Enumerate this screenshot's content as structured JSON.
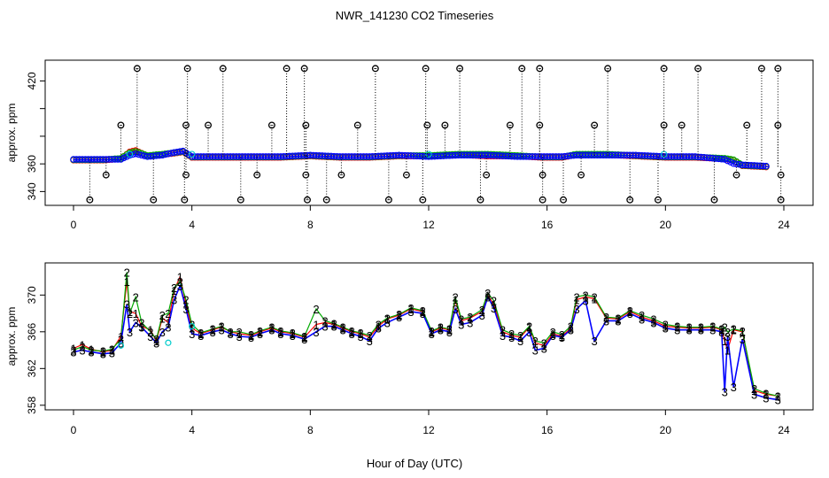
{
  "title": "NWR_141230  CO2 Timeseries",
  "xlabel": "Hour of Day (UTC)",
  "chart_data": [
    {
      "type": "scatter",
      "panel": "top",
      "ylabel": "approx. ppm",
      "xlim": [
        0,
        24
      ],
      "ylim": [
        330,
        435
      ],
      "x_ticks": [
        0,
        4,
        8,
        12,
        16,
        20,
        24
      ],
      "y_ticks": [
        340,
        360,
        380,
        400,
        420
      ],
      "y_ticks_labeled": [
        340,
        360,
        420
      ],
      "grid": false,
      "baseline_series": [
        {
          "name": "",
          "color": "#ff0000",
          "x": [
            0,
            1,
            1.6,
            1.9,
            2.1,
            2.5,
            3,
            3.4,
            3.7,
            4,
            5,
            6,
            7,
            8,
            9,
            10,
            11,
            12,
            13,
            14,
            15,
            15.8,
            16.5,
            17,
            18,
            19,
            20,
            21,
            22,
            22.3,
            22.6,
            23.5
          ],
          "y": [
            363,
            363,
            364,
            369,
            370,
            366,
            367,
            368,
            369,
            365,
            365,
            365,
            365,
            366,
            365,
            365,
            366,
            366,
            367,
            366,
            366,
            365,
            365,
            367,
            367,
            366,
            365,
            365,
            364,
            363,
            359,
            358
          ]
        },
        {
          "name": "",
          "color": "#00aa00",
          "x": [
            0,
            1,
            1.6,
            1.9,
            2.1,
            2.5,
            3,
            3.4,
            3.7,
            4,
            5,
            6,
            7,
            8,
            9,
            10,
            11,
            12,
            13,
            14,
            15,
            15.8,
            16.5,
            17,
            18,
            19,
            20,
            21,
            22,
            22.3,
            22.6,
            23.5
          ],
          "y": [
            363,
            363,
            364,
            368,
            369,
            366,
            367,
            368,
            369,
            365,
            365,
            365,
            365,
            366,
            365,
            365,
            366,
            366,
            367,
            367,
            366,
            365,
            365,
            367,
            367,
            366,
            365,
            365,
            364,
            363,
            359,
            358
          ]
        },
        {
          "name": "",
          "color": "#0000ff",
          "x": [
            0,
            1,
            1.6,
            1.9,
            2.1,
            2.5,
            3,
            3.4,
            3.7,
            4,
            5,
            6,
            7,
            8,
            9,
            10,
            11,
            12,
            13,
            14,
            15,
            15.8,
            16.5,
            17,
            18,
            19,
            20,
            21,
            22,
            22.3,
            22.6,
            23.5
          ],
          "y": [
            363,
            363,
            363,
            366,
            367,
            365,
            366,
            368,
            369,
            365,
            365,
            365,
            365,
            366,
            365,
            365,
            366,
            365,
            366,
            366,
            365,
            365,
            365,
            366,
            366,
            366,
            365,
            365,
            363,
            360,
            359,
            358
          ]
        }
      ],
      "spikes_up": {
        "x": [
          2.15,
          3.85,
          5.05,
          7.2,
          7.8,
          10.2,
          11.9,
          13.05,
          15.15,
          15.75,
          18.05,
          19.95,
          21.1,
          23.25,
          23.8
        ],
        "y": [
          429,
          429,
          429,
          429,
          429,
          429,
          429,
          429,
          429,
          429,
          429,
          429,
          429,
          429,
          429
        ]
      },
      "spikes_mid": {
        "x": [
          1.6,
          3.8,
          4.55,
          6.7,
          7.85,
          9.6,
          11.95,
          12.55,
          14.75,
          15.75,
          17.6,
          19.95,
          20.55,
          22.75,
          23.8
        ],
        "y": [
          388,
          388,
          388,
          388,
          388,
          388,
          388,
          388,
          388,
          388,
          388,
          388,
          388,
          388,
          388
        ]
      },
      "spikes_low": {
        "x": [
          1.1,
          3.8,
          6.2,
          7.85,
          9.05,
          11.25,
          13.95,
          15.85,
          17.15,
          22.4,
          23.9
        ],
        "y": [
          352,
          352,
          352,
          352,
          352,
          352,
          352,
          352,
          352,
          352,
          352
        ]
      },
      "spikes_bottom": {
        "x": [
          0.55,
          2.7,
          3.75,
          5.65,
          7.9,
          8.55,
          10.65,
          11.8,
          13.75,
          15.85,
          16.55,
          18.8,
          19.75,
          21.65,
          23.9
        ],
        "y": [
          334,
          334,
          334,
          334,
          334,
          334,
          334,
          334,
          334,
          334,
          334,
          334,
          334,
          334,
          334
        ]
      }
    },
    {
      "type": "line",
      "panel": "bottom",
      "ylabel": "approx. ppm",
      "xlim": [
        0,
        24
      ],
      "ylim": [
        357.5,
        373.5
      ],
      "x_ticks": [
        0,
        4,
        8,
        12,
        16,
        20,
        24
      ],
      "y_ticks": [
        358,
        362,
        366,
        370
      ],
      "grid": false,
      "x": [
        0,
        0.3,
        0.6,
        1.0,
        1.3,
        1.6,
        1.8,
        1.9,
        2.1,
        2.3,
        2.6,
        2.8,
        3.0,
        3.2,
        3.4,
        3.6,
        3.8,
        4.0,
        4.3,
        4.7,
        5.0,
        5.3,
        5.6,
        6.0,
        6.3,
        6.7,
        7.0,
        7.4,
        7.8,
        8.2,
        8.5,
        8.8,
        9.1,
        9.4,
        9.7,
        10.0,
        10.3,
        10.6,
        11.0,
        11.4,
        11.8,
        12.1,
        12.4,
        12.7,
        12.9,
        13.1,
        13.4,
        13.8,
        14.0,
        14.2,
        14.5,
        14.8,
        15.1,
        15.4,
        15.6,
        15.9,
        16.2,
        16.5,
        16.8,
        17.0,
        17.3,
        17.6,
        18.0,
        18.4,
        18.8,
        19.2,
        19.6,
        20.0,
        20.4,
        20.8,
        21.2,
        21.6,
        21.9,
        22.0,
        22.1,
        22.3,
        22.6,
        23.0,
        23.4,
        23.8
      ],
      "series": [
        {
          "name": "1",
          "color": "#ff0000",
          "values": [
            364.2,
            364.6,
            364.1,
            363.8,
            364.0,
            365.5,
            371.5,
            368.2,
            368.0,
            366.6,
            366.2,
            365.0,
            367.5,
            367.0,
            370.5,
            372.0,
            369.0,
            366.4,
            365.8,
            366.2,
            366.5,
            366.0,
            365.8,
            365.6,
            366.0,
            366.4,
            366.0,
            365.8,
            365.4,
            366.8,
            367.0,
            366.8,
            366.4,
            366.0,
            365.8,
            365.4,
            366.6,
            367.4,
            367.8,
            368.5,
            368.2,
            366.0,
            366.4,
            366.2,
            369.5,
            367.2,
            367.5,
            368.2,
            370.0,
            369.0,
            366.0,
            365.6,
            365.4,
            366.5,
            364.8,
            364.5,
            365.8,
            365.5,
            366.4,
            369.5,
            369.8,
            369.6,
            367.5,
            367.4,
            368.2,
            367.6,
            367.2,
            366.6,
            366.5,
            366.4,
            366.4,
            366.5,
            366.2,
            365.0,
            364.0,
            366.2,
            366.0,
            359.6,
            359.2,
            359.0
          ]
        },
        {
          "name": "2",
          "color": "#00aa00",
          "values": [
            364.0,
            364.4,
            364.0,
            363.9,
            364.1,
            365.2,
            372.5,
            368.0,
            369.8,
            367.0,
            366.0,
            365.2,
            367.8,
            368.0,
            370.8,
            371.5,
            369.5,
            366.8,
            365.9,
            366.3,
            366.6,
            366.0,
            366.0,
            365.7,
            366.1,
            366.5,
            366.1,
            365.9,
            365.5,
            368.5,
            367.2,
            366.9,
            366.5,
            366.1,
            365.9,
            365.6,
            366.8,
            367.5,
            367.9,
            368.6,
            368.3,
            366.1,
            366.5,
            366.3,
            369.8,
            367.4,
            367.6,
            368.4,
            370.2,
            369.4,
            366.2,
            365.8,
            365.6,
            366.6,
            365.0,
            364.8,
            366.0,
            365.7,
            366.6,
            369.8,
            370.0,
            369.8,
            367.6,
            367.5,
            368.3,
            367.8,
            367.4,
            366.8,
            366.6,
            366.5,
            366.5,
            366.6,
            366.3,
            366.5,
            366.0,
            366.3,
            366.1,
            359.8,
            359.3,
            359.0
          ]
        },
        {
          "name": "3",
          "color": "#0000ff",
          "values": [
            363.8,
            364.0,
            363.8,
            363.6,
            363.7,
            364.8,
            369.0,
            366.0,
            367.0,
            366.5,
            365.5,
            364.8,
            366.0,
            366.5,
            369.5,
            371.0,
            368.5,
            365.8,
            365.6,
            366.0,
            366.2,
            365.8,
            365.5,
            365.4,
            365.8,
            366.2,
            365.8,
            365.6,
            365.2,
            366.0,
            366.6,
            366.6,
            366.2,
            365.8,
            365.5,
            365.0,
            366.4,
            367.0,
            367.6,
            368.2,
            368.0,
            365.8,
            366.2,
            366.0,
            368.5,
            366.8,
            367.0,
            367.8,
            369.8,
            368.6,
            365.6,
            365.4,
            365.0,
            366.0,
            364.0,
            364.2,
            365.6,
            365.4,
            366.2,
            368.5,
            369.4,
            365.0,
            367.2,
            367.2,
            368.0,
            367.4,
            367.0,
            366.4,
            366.2,
            366.2,
            366.2,
            366.2,
            366.0,
            359.5,
            365.5,
            360.0,
            365.2,
            359.2,
            358.8,
            358.6
          ]
        }
      ],
      "cyan_points": {
        "x": [
          1.6,
          3.2,
          4.0
        ],
        "y": [
          364.5,
          364.8,
          366.6
        ]
      }
    }
  ]
}
